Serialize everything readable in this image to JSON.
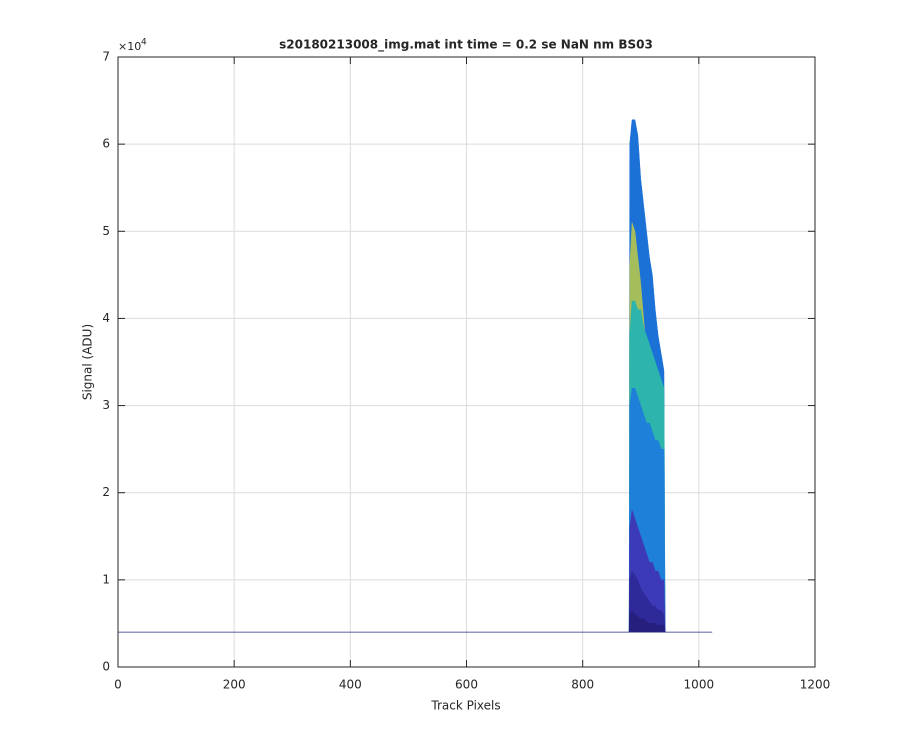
{
  "chart_data": {
    "type": "area",
    "title": "s20180213008_img.mat int time = 0.2 se  NaN nm BS03",
    "x_label": "Track Pixels",
    "y_label": "Signal (ADU)",
    "y_multiplier_label": "×10",
    "y_multiplier_power": "4",
    "xlim": [
      0,
      1200
    ],
    "xticks": [
      0,
      200,
      400,
      600,
      800,
      1000,
      1200
    ],
    "ylim": [
      0,
      70000
    ],
    "yticks": [
      0,
      {
        "value": 10000,
        "label": "1"
      },
      {
        "value": 20000,
        "label": "2"
      },
      {
        "value": 30000,
        "label": "3"
      },
      {
        "value": 40000,
        "label": "4"
      },
      {
        "value": 50000,
        "label": "5"
      },
      {
        "value": 60000,
        "label": "6"
      },
      {
        "value": 70000,
        "label": "7"
      }
    ],
    "grid": true,
    "series": [
      {
        "kind": "area",
        "color": "#1c71d6",
        "x": [
          880,
          881,
          885,
          890,
          895,
          900,
          905,
          910,
          915,
          920,
          925,
          930,
          935,
          940,
          942
        ],
        "values": [
          4000,
          60000,
          62800,
          62800,
          61000,
          56000,
          53000,
          50000,
          47000,
          45000,
          41000,
          38000,
          36000,
          34000,
          4000
        ]
      },
      {
        "kind": "area",
        "color": "#a6bd5c",
        "x": [
          880,
          881,
          885,
          890,
          895,
          900,
          905,
          910,
          915,
          920,
          925,
          930,
          935,
          940,
          942
        ],
        "values": [
          4000,
          46000,
          51000,
          50000,
          47000,
          44000,
          40000,
          36000,
          33000,
          30000,
          28000,
          26000,
          25000,
          24000,
          4000
        ]
      },
      {
        "kind": "area",
        "color": "#2db5ad",
        "x": [
          880,
          881,
          885,
          890,
          895,
          900,
          905,
          910,
          915,
          920,
          925,
          930,
          935,
          940,
          942
        ],
        "values": [
          4000,
          38000,
          42000,
          42000,
          41000,
          41000,
          39000,
          38000,
          37000,
          36000,
          35000,
          34000,
          33000,
          32000,
          4000
        ]
      },
      {
        "kind": "area",
        "color": "#1f80da",
        "x": [
          880,
          881,
          885,
          890,
          895,
          900,
          905,
          910,
          915,
          920,
          925,
          930,
          935,
          940,
          942
        ],
        "values": [
          4000,
          30000,
          32000,
          32000,
          31000,
          30000,
          29000,
          28000,
          28000,
          27000,
          26000,
          26000,
          25000,
          25000,
          4000
        ]
      },
      {
        "kind": "area",
        "color": "#3d3ab8",
        "x": [
          880,
          881,
          885,
          890,
          895,
          900,
          905,
          910,
          915,
          920,
          925,
          930,
          935,
          940,
          942
        ],
        "values": [
          4000,
          16000,
          18000,
          17000,
          16000,
          15000,
          14000,
          13000,
          12000,
          12000,
          11000,
          11000,
          10000,
          10000,
          4000
        ]
      },
      {
        "kind": "area",
        "color": "#2e2a9a",
        "x": [
          880,
          881,
          885,
          890,
          895,
          900,
          905,
          910,
          915,
          920,
          925,
          930,
          935,
          940,
          942
        ],
        "values": [
          4000,
          10000,
          11000,
          10500,
          10000,
          9000,
          8500,
          8000,
          7500,
          7000,
          7000,
          6500,
          6500,
          6000,
          4000
        ]
      },
      {
        "kind": "area",
        "color": "#261f7e",
        "x": [
          880,
          881,
          885,
          890,
          895,
          900,
          905,
          910,
          915,
          920,
          925,
          930,
          935,
          940,
          942
        ],
        "values": [
          4000,
          6000,
          6500,
          6000,
          5800,
          5500,
          5500,
          5200,
          5000,
          5000,
          5000,
          4800,
          4800,
          4800,
          4000
        ]
      },
      {
        "kind": "line",
        "color": "#2a2a8a",
        "x": [
          0,
          1023
        ],
        "values": [
          4000,
          4000
        ]
      }
    ]
  }
}
